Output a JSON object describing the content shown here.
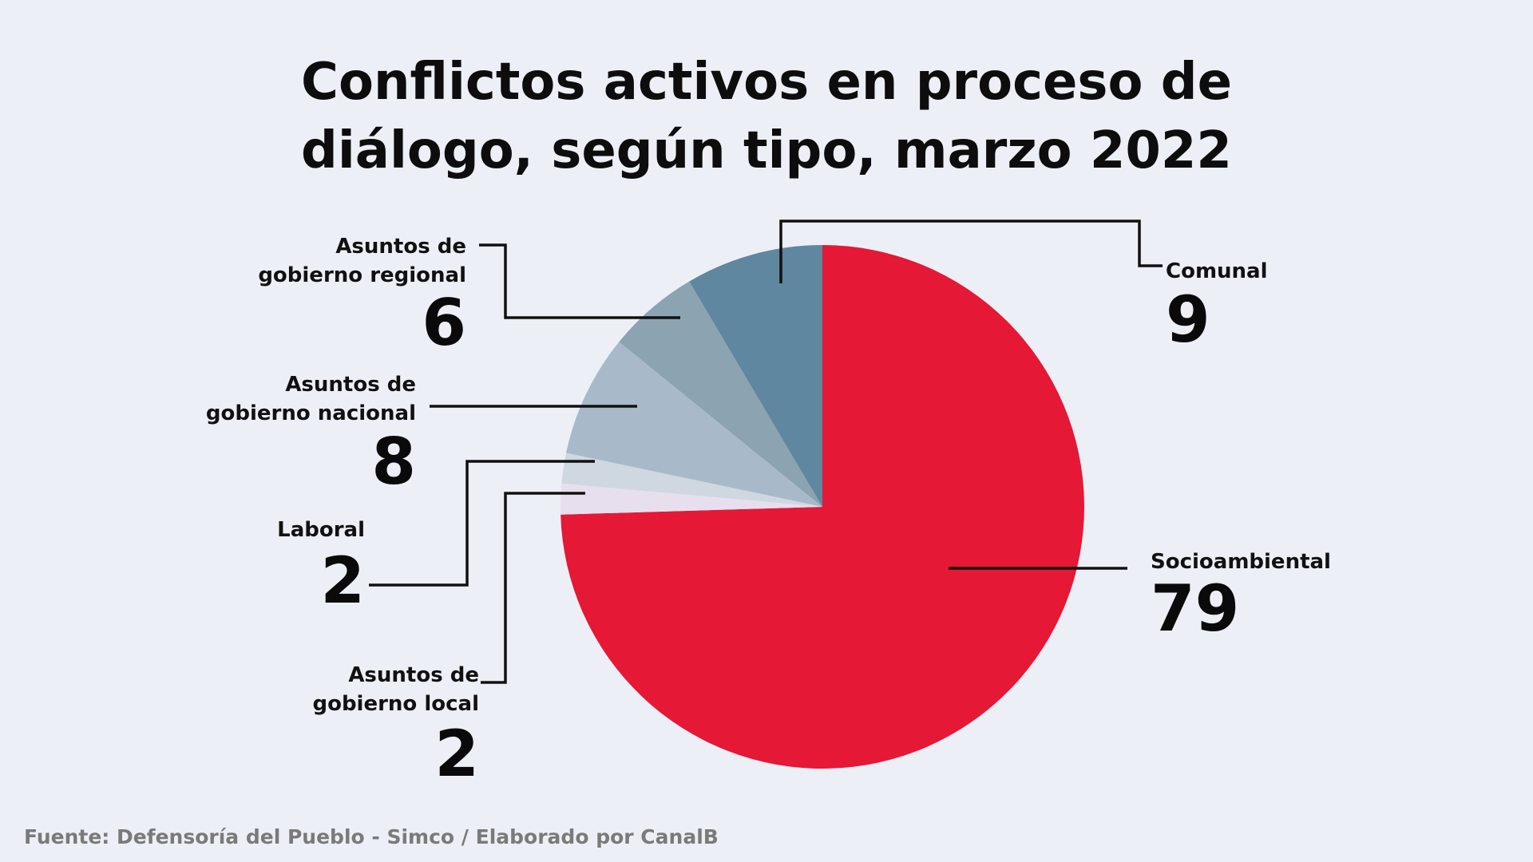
{
  "title": {
    "line1": "Conflictos activos en proceso de",
    "line2": "diálogo, según tipo, marzo 2022"
  },
  "source": "Fuente: Defensoría del Pueblo - Simco / Elaborado por CanalB",
  "chart_data": {
    "type": "pie",
    "title": "Conflictos activos en proceso de diálogo, según tipo, marzo 2022",
    "slices": [
      {
        "label_lines": [
          "Socioambiental"
        ],
        "value": 79,
        "color": "#e51836"
      },
      {
        "label_lines": [
          "Asuntos de",
          "gobierno local"
        ],
        "value": 2,
        "color": "#e8dfee"
      },
      {
        "label_lines": [
          "Laboral"
        ],
        "value": 2,
        "color": "#cfd8e0"
      },
      {
        "label_lines": [
          "Asuntos de",
          "gobierno nacional"
        ],
        "value": 8,
        "color": "#a8bac9"
      },
      {
        "label_lines": [
          "Asuntos de",
          "gobierno regional"
        ],
        "value": 6,
        "color": "#8ca3b1"
      },
      {
        "label_lines": [
          "Comunal"
        ],
        "value": 9,
        "color": "#5f87a0"
      }
    ]
  }
}
